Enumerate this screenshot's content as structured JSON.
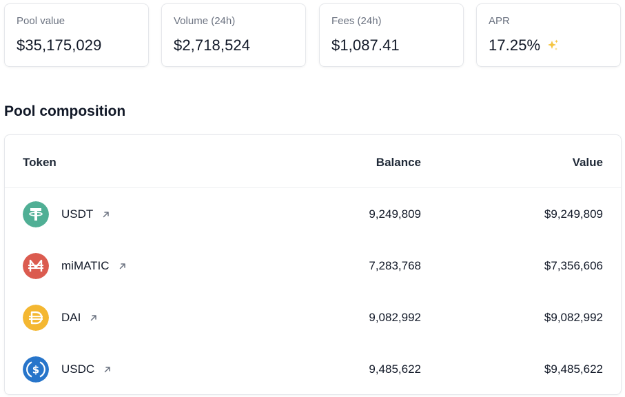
{
  "stats": [
    {
      "label": "Pool value",
      "value": "$35,175,029"
    },
    {
      "label": "Volume (24h)",
      "value": "$2,718,524"
    },
    {
      "label": "Fees (24h)",
      "value": "$1,087.41"
    },
    {
      "label": "APR",
      "value": "17.25%",
      "icon": "sparkle-icon",
      "icon_color": "#f5c542"
    }
  ],
  "composition": {
    "title": "Pool composition",
    "headers": {
      "token": "Token",
      "balance": "Balance",
      "value": "Value"
    },
    "rows": [
      {
        "token": "USDT",
        "balance": "9,249,809",
        "value": "$9,249,809",
        "icon": "usdt-icon",
        "color": "#50af95"
      },
      {
        "token": "miMATIC",
        "balance": "7,283,768",
        "value": "$7,356,606",
        "icon": "mimatic-icon",
        "color": "#db5b4f"
      },
      {
        "token": "DAI",
        "balance": "9,082,992",
        "value": "$9,082,992",
        "icon": "dai-icon",
        "color": "#f4b731"
      },
      {
        "token": "USDC",
        "balance": "9,485,622",
        "value": "$9,485,622",
        "icon": "usdc-icon",
        "color": "#2775ca"
      }
    ]
  }
}
